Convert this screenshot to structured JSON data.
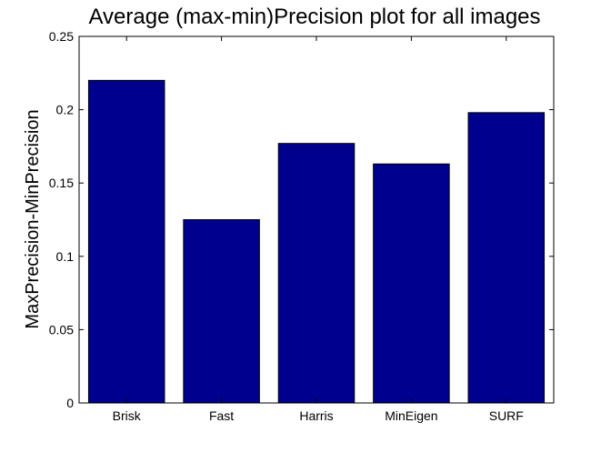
{
  "chart_data": {
    "type": "bar",
    "title": "Average (max-min)Precision plot for all images",
    "xlabel": "",
    "ylabel": "MaxPrecision-MinPrecision",
    "categories": [
      "Brisk",
      "Fast",
      "Harris",
      "MinEigen",
      "SURF"
    ],
    "values": [
      0.22,
      0.125,
      0.177,
      0.163,
      0.198
    ],
    "ylim": [
      0,
      0.25
    ],
    "yticks": [
      0,
      0.05,
      0.1,
      0.15,
      0.2,
      0.25
    ],
    "ytick_labels": [
      "0",
      "0.05",
      "0.1",
      "0.15",
      "0.2",
      "0.25"
    ],
    "bar_color": "#00008f",
    "grid": false,
    "legend": "none"
  }
}
